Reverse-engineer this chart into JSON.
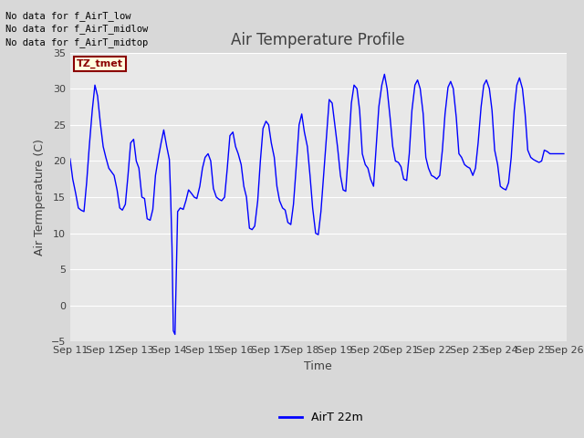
{
  "title": "Air Temperature Profile",
  "xlabel": "Time",
  "ylabel": "Air Termperature (C)",
  "ylim": [
    -5,
    35
  ],
  "background_color": "#e8e8e8",
  "line_color": "#0000ff",
  "grid_color": "#ffffff",
  "text_color": "#606060",
  "legend_label": "AirT 22m",
  "no_data_texts": [
    "No data for f_AirT_low",
    "No data for f_AirT_midlow",
    "No data for f_AirT_midtop"
  ],
  "tz_label": "TZ_tmet",
  "yticks": [
    -5,
    0,
    5,
    10,
    15,
    20,
    25,
    30,
    35
  ],
  "x_tick_labels": [
    "Sep 11",
    "Sep 12",
    "Sep 13",
    "Sep 14",
    "Sep 15",
    "Sep 16",
    "Sep 17",
    "Sep 18",
    "Sep 19",
    "Sep 20",
    "Sep 21",
    "Sep 22",
    "Sep 23",
    "Sep 24",
    "Sep 25",
    "Sep 26"
  ],
  "data_x": [
    0,
    0.08,
    0.17,
    0.25,
    0.33,
    0.42,
    0.5,
    0.58,
    0.67,
    0.75,
    0.83,
    0.92,
    1,
    1.08,
    1.17,
    1.25,
    1.33,
    1.42,
    1.5,
    1.58,
    1.67,
    1.75,
    1.83,
    1.92,
    2,
    2.08,
    2.17,
    2.25,
    2.33,
    2.42,
    2.5,
    2.58,
    2.67,
    2.75,
    2.83,
    2.92,
    3,
    3.04,
    3.08,
    3.12,
    3.17,
    3.25,
    3.33,
    3.42,
    3.5,
    3.58,
    3.67,
    3.75,
    3.83,
    3.92,
    4,
    4.08,
    4.17,
    4.25,
    4.33,
    4.42,
    4.5,
    4.58,
    4.67,
    4.75,
    4.83,
    4.92,
    5,
    5.08,
    5.17,
    5.25,
    5.33,
    5.42,
    5.5,
    5.58,
    5.67,
    5.75,
    5.83,
    5.92,
    6,
    6.08,
    6.17,
    6.25,
    6.33,
    6.42,
    6.5,
    6.58,
    6.67,
    6.75,
    6.83,
    6.92,
    7,
    7.08,
    7.17,
    7.25,
    7.33,
    7.42,
    7.5,
    7.58,
    7.67,
    7.75,
    7.83,
    7.92,
    8,
    8.08,
    8.17,
    8.25,
    8.33,
    8.42,
    8.5,
    8.58,
    8.67,
    8.75,
    8.83,
    8.92,
    9,
    9.08,
    9.17,
    9.25,
    9.33,
    9.42,
    9.5,
    9.58,
    9.67,
    9.75,
    9.83,
    9.92,
    10,
    10.08,
    10.17,
    10.25,
    10.33,
    10.42,
    10.5,
    10.58,
    10.67,
    10.75,
    10.83,
    10.92,
    11,
    11.08,
    11.17,
    11.25,
    11.33,
    11.42,
    11.5,
    11.58,
    11.67,
    11.75,
    11.83,
    11.92,
    12,
    12.08,
    12.17,
    12.25,
    12.33,
    12.42,
    12.5,
    12.58,
    12.67,
    12.75,
    12.83,
    12.92,
    13,
    13.08,
    13.17,
    13.25,
    13.33,
    13.42,
    13.5,
    13.58,
    13.67,
    13.75,
    13.83,
    13.92,
    14,
    14.08,
    14.17,
    14.25,
    14.33,
    14.42,
    14.5,
    14.58,
    14.67,
    14.75,
    14.83,
    14.92
  ],
  "data_y": [
    20.3,
    17.5,
    15.5,
    13.5,
    13.2,
    13.0,
    17.0,
    22.0,
    27.0,
    30.5,
    29.0,
    25.0,
    22.0,
    20.5,
    19.0,
    18.5,
    18.0,
    16.0,
    13.5,
    13.2,
    14.0,
    18.0,
    22.5,
    23.0,
    20.0,
    19.0,
    15.0,
    14.8,
    12.0,
    11.8,
    13.3,
    18.0,
    20.5,
    22.5,
    24.3,
    22.0,
    20.2,
    15.0,
    8.0,
    -3.5,
    -4.0,
    13.0,
    13.5,
    13.3,
    14.5,
    16.0,
    15.5,
    15.0,
    14.8,
    16.5,
    19.0,
    20.5,
    21.0,
    20.0,
    16.2,
    15.0,
    14.7,
    14.5,
    15.0,
    19.0,
    23.5,
    24.0,
    22.0,
    21.0,
    19.5,
    16.5,
    15.0,
    10.7,
    10.5,
    11.0,
    14.5,
    20.0,
    24.5,
    25.5,
    25.0,
    22.5,
    20.5,
    16.5,
    14.5,
    13.5,
    13.2,
    11.5,
    11.2,
    14.0,
    19.0,
    25.0,
    26.5,
    24.0,
    22.0,
    18.0,
    13.5,
    10.0,
    9.8,
    13.0,
    18.5,
    23.5,
    28.5,
    28.0,
    25.0,
    22.0,
    18.0,
    16.0,
    15.8,
    22.0,
    28.0,
    30.5,
    30.0,
    27.0,
    21.0,
    19.5,
    19.0,
    17.5,
    16.5,
    22.0,
    27.5,
    30.5,
    32.0,
    30.0,
    26.0,
    22.0,
    20.0,
    19.8,
    19.2,
    17.5,
    17.3,
    21.0,
    27.0,
    30.5,
    31.2,
    30.0,
    26.5,
    20.5,
    19.0,
    18.0,
    17.8,
    17.5,
    18.0,
    21.5,
    26.5,
    30.2,
    31.0,
    30.0,
    26.0,
    21.0,
    20.5,
    19.5,
    19.2,
    19.0,
    18.0,
    19.0,
    22.5,
    27.5,
    30.5,
    31.2,
    30.0,
    27.0,
    21.5,
    19.5,
    16.5,
    16.2,
    16.0,
    17.0,
    20.5,
    27.0,
    30.5,
    31.5,
    30.0,
    26.5,
    21.5,
    20.5,
    20.2,
    20.0,
    19.8,
    20.0,
    21.5,
    21.3,
    21.0,
    21.0,
    21.0,
    21.0,
    21.0,
    21.0
  ]
}
